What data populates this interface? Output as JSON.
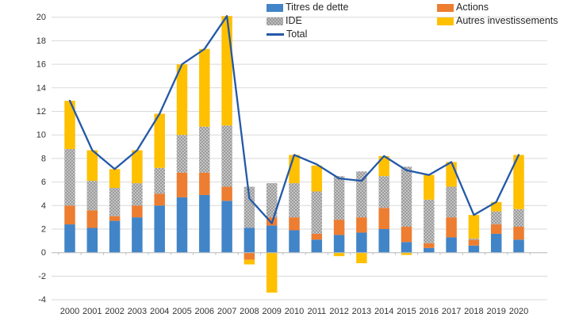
{
  "chart_data": {
    "type": "bar",
    "subtype": "stacked-bar-with-line",
    "title": "",
    "xlabel": "",
    "ylabel": "",
    "categories": [
      "2000",
      "2001",
      "2002",
      "2003",
      "2004",
      "2005",
      "2006",
      "2007",
      "2008",
      "2009",
      "2010",
      "2011",
      "2012",
      "2013",
      "2014",
      "2015",
      "2016",
      "2017",
      "2018",
      "2019",
      "2020"
    ],
    "series": [
      {
        "name": "Titres de dette",
        "type": "bar",
        "color": "#4185C8",
        "values": [
          2.4,
          2.1,
          2.7,
          3.0,
          4.0,
          4.7,
          4.9,
          4.4,
          2.1,
          2.3,
          1.9,
          1.1,
          1.5,
          1.7,
          2.0,
          0.9,
          0.4,
          1.3,
          0.6,
          1.6,
          1.1
        ]
      },
      {
        "name": "Actions",
        "type": "bar",
        "color": "#ED7D31",
        "values": [
          1.6,
          1.5,
          0.4,
          1.0,
          1.0,
          2.1,
          1.9,
          1.2,
          -0.6,
          0.7,
          1.1,
          0.5,
          1.3,
          1.3,
          1.8,
          1.3,
          0.4,
          1.7,
          0.5,
          0.8,
          1.1
        ]
      },
      {
        "name": "IDE",
        "type": "bar",
        "color": "#BDBDBD",
        "pattern": "checker",
        "pattern_dark": "#999999",
        "values": [
          4.8,
          2.5,
          2.4,
          1.9,
          2.2,
          3.2,
          3.9,
          5.2,
          3.5,
          2.9,
          2.9,
          3.6,
          3.7,
          3.9,
          2.7,
          5.1,
          3.7,
          2.6,
          0.1,
          1.1,
          1.5
        ]
      },
      {
        "name": "Autres investissements",
        "type": "bar",
        "color": "#FFC000",
        "values": [
          4.1,
          2.6,
          1.6,
          2.8,
          4.6,
          6.0,
          6.6,
          9.3,
          -0.4,
          -3.4,
          2.4,
          2.2,
          -0.3,
          -0.9,
          1.7,
          -0.2,
          2.1,
          2.1,
          2.0,
          0.8,
          4.6
        ]
      },
      {
        "name": "Total",
        "type": "line",
        "color": "#2458A8",
        "values": [
          12.9,
          8.7,
          7.1,
          8.7,
          11.8,
          16.0,
          17.3,
          20.1,
          4.6,
          2.5,
          8.3,
          7.5,
          6.3,
          6.1,
          8.2,
          7.0,
          6.6,
          7.7,
          3.2,
          4.3,
          8.3
        ]
      }
    ],
    "ylim": [
      -4,
      20
    ],
    "y_ticks": [
      20,
      18,
      16,
      14,
      12,
      10,
      8,
      6,
      4,
      2,
      0,
      -2,
      -4
    ],
    "grid": true,
    "grid_color": "#D9D9D9",
    "axis_color": "#BFBFBF",
    "tick_label_color": "#333333",
    "legend_position": "top-center"
  }
}
